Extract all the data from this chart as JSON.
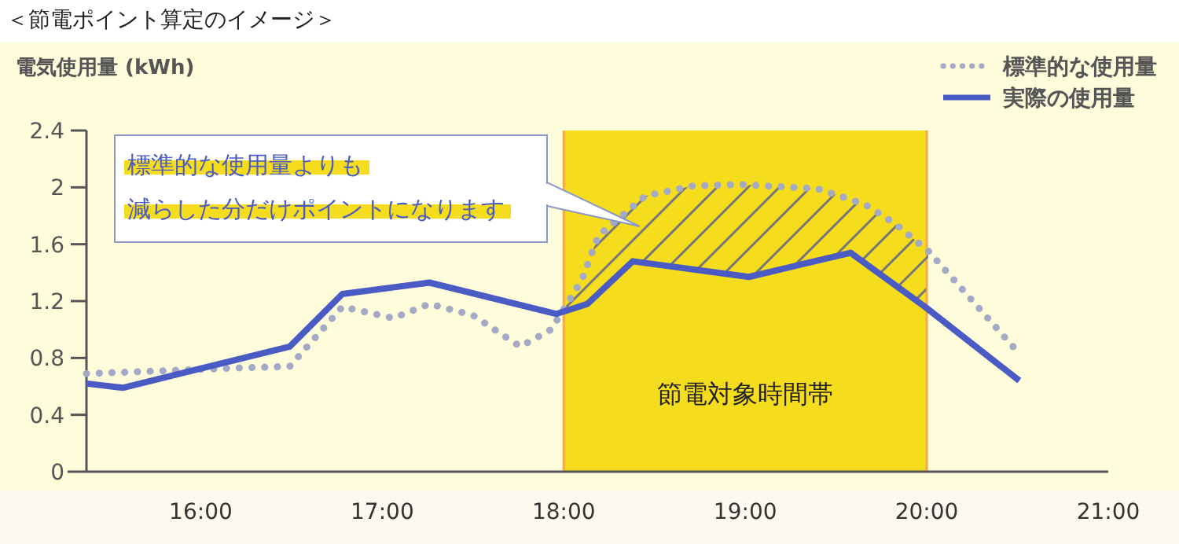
{
  "chart_data": {
    "type": "line",
    "title": "＜節電ポイント算定のイメージ＞",
    "ylabel": "電気使用量 (kWh)",
    "xlim": [
      15.37,
      21
    ],
    "xticks": [
      {
        "value": 16,
        "label": "16:00"
      },
      {
        "value": 17,
        "label": "17:00"
      },
      {
        "value": 18,
        "label": "18:00"
      },
      {
        "value": 19,
        "label": "19:00"
      },
      {
        "value": 20,
        "label": "20:00"
      },
      {
        "value": 21,
        "label": "21:00"
      }
    ],
    "ylim": [
      0,
      2.4
    ],
    "yticks": [
      0,
      0.4,
      0.8,
      1.2,
      1.6,
      2.0,
      2.4
    ],
    "series": [
      {
        "name": "標準的な使用量",
        "color": "#a4aac6",
        "line_style": "dotted",
        "x": [
          15.37,
          15.8,
          16.2,
          16.49,
          16.78,
          17.06,
          17.26,
          17.5,
          17.76,
          17.93,
          18.1,
          18.19,
          18.45,
          18.71,
          18.97,
          19.4,
          19.66,
          19.83,
          20.01,
          20.51
        ],
        "values": [
          0.69,
          0.71,
          0.73,
          0.74,
          1.16,
          1.08,
          1.18,
          1.1,
          0.88,
          1.0,
          1.35,
          1.66,
          1.94,
          2.01,
          2.02,
          1.99,
          1.88,
          1.74,
          1.55,
          0.83
        ]
      },
      {
        "name": "実際の使用量",
        "color": "#4a5cc4",
        "line_style": "solid",
        "x": [
          15.37,
          15.57,
          16.49,
          16.78,
          17.26,
          17.96,
          18.13,
          18.38,
          19.02,
          19.58,
          19.99,
          20.51
        ],
        "values": [
          0.62,
          0.59,
          0.88,
          1.25,
          1.33,
          1.11,
          1.18,
          1.48,
          1.37,
          1.54,
          1.16,
          0.64
        ]
      }
    ],
    "bands": [
      {
        "axis": "x",
        "from": 18,
        "to": 20,
        "label": "節電対象時間帯",
        "color": "#f5dc1c"
      }
    ],
    "annotations": [
      "標準的な使用量よりも",
      "減らした分だけポイントになります"
    ],
    "legend": "top right"
  }
}
